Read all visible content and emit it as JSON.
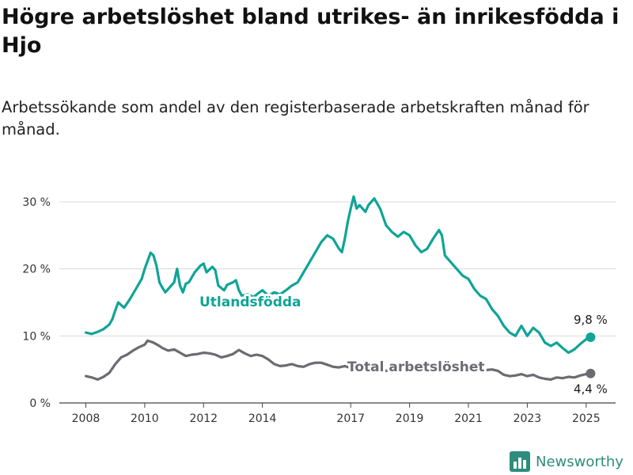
{
  "header": {
    "title": "Högre arbetslöshet bland utrikes- än inrikesfödda i Hjo",
    "subtitle": "Arbetssökande som andel av den registerbaserade arbetskraften månad för månad."
  },
  "brand": {
    "name": "Newsworthy",
    "icon": "newsworthy-logo-icon",
    "color": "#2e8c7c"
  },
  "chart_data": {
    "type": "line",
    "x_unit": "year",
    "ylim": [
      0,
      32
    ],
    "yticks": [
      {
        "value": 0,
        "label": "0 %"
      },
      {
        "value": 10,
        "label": "10 %"
      },
      {
        "value": 20,
        "label": "20 %"
      },
      {
        "value": 30,
        "label": "30 %"
      }
    ],
    "xticks": [
      {
        "value": 2008,
        "label": "2008"
      },
      {
        "value": 2010,
        "label": "2010"
      },
      {
        "value": 2012,
        "label": "2012"
      },
      {
        "value": 2014,
        "label": "2014"
      },
      {
        "value": 2017,
        "label": "2017"
      },
      {
        "value": 2019,
        "label": "2019"
      },
      {
        "value": 2021,
        "label": "2021"
      },
      {
        "value": 2023,
        "label": "2023"
      },
      {
        "value": 2025,
        "label": "2025"
      }
    ],
    "grid": true,
    "series": [
      {
        "name": "Utlandsfödda",
        "color": "#0fa496",
        "end_label": "9,8 %",
        "points": [
          [
            2008.0,
            10.5
          ],
          [
            2008.2,
            10.3
          ],
          [
            2008.4,
            10.6
          ],
          [
            2008.6,
            11.0
          ],
          [
            2008.8,
            11.7
          ],
          [
            2008.9,
            12.5
          ],
          [
            2009.0,
            13.8
          ],
          [
            2009.1,
            15.0
          ],
          [
            2009.3,
            14.2
          ],
          [
            2009.5,
            15.5
          ],
          [
            2009.7,
            17.0
          ],
          [
            2009.9,
            18.5
          ],
          [
            2010.0,
            20.0
          ],
          [
            2010.2,
            22.4
          ],
          [
            2010.3,
            22.0
          ],
          [
            2010.4,
            20.5
          ],
          [
            2010.5,
            18.0
          ],
          [
            2010.6,
            17.2
          ],
          [
            2010.7,
            16.5
          ],
          [
            2010.9,
            17.5
          ],
          [
            2011.0,
            18.0
          ],
          [
            2011.1,
            20.0
          ],
          [
            2011.2,
            17.5
          ],
          [
            2011.3,
            16.5
          ],
          [
            2011.4,
            17.8
          ],
          [
            2011.5,
            18.0
          ],
          [
            2011.7,
            19.5
          ],
          [
            2011.9,
            20.5
          ],
          [
            2012.0,
            20.8
          ],
          [
            2012.1,
            19.5
          ],
          [
            2012.3,
            20.3
          ],
          [
            2012.4,
            19.8
          ],
          [
            2012.5,
            17.5
          ],
          [
            2012.7,
            16.8
          ],
          [
            2012.8,
            17.6
          ],
          [
            2013.0,
            18.0
          ],
          [
            2013.1,
            18.3
          ],
          [
            2013.2,
            16.8
          ],
          [
            2013.3,
            16.0
          ],
          [
            2013.5,
            16.2
          ],
          [
            2013.7,
            15.8
          ],
          [
            2013.9,
            16.5
          ],
          [
            2014.0,
            16.8
          ],
          [
            2014.2,
            16.0
          ],
          [
            2014.4,
            16.5
          ],
          [
            2014.6,
            16.2
          ],
          [
            2014.8,
            16.8
          ],
          [
            2015.0,
            17.5
          ],
          [
            2015.2,
            18.0
          ],
          [
            2015.4,
            19.5
          ],
          [
            2015.6,
            21.0
          ],
          [
            2015.8,
            22.5
          ],
          [
            2016.0,
            24.0
          ],
          [
            2016.2,
            25.0
          ],
          [
            2016.4,
            24.5
          ],
          [
            2016.6,
            23.0
          ],
          [
            2016.7,
            22.5
          ],
          [
            2016.8,
            24.5
          ],
          [
            2016.9,
            27.0
          ],
          [
            2017.0,
            29.0
          ],
          [
            2017.1,
            30.8
          ],
          [
            2017.2,
            29.0
          ],
          [
            2017.3,
            29.5
          ],
          [
            2017.5,
            28.5
          ],
          [
            2017.6,
            29.5
          ],
          [
            2017.8,
            30.5
          ],
          [
            2018.0,
            29.0
          ],
          [
            2018.2,
            26.5
          ],
          [
            2018.4,
            25.5
          ],
          [
            2018.6,
            24.8
          ],
          [
            2018.8,
            25.5
          ],
          [
            2019.0,
            25.0
          ],
          [
            2019.2,
            23.5
          ],
          [
            2019.4,
            22.5
          ],
          [
            2019.6,
            23.0
          ],
          [
            2019.8,
            24.5
          ],
          [
            2020.0,
            25.8
          ],
          [
            2020.1,
            25.0
          ],
          [
            2020.2,
            22.0
          ],
          [
            2020.4,
            21.0
          ],
          [
            2020.6,
            20.0
          ],
          [
            2020.8,
            19.0
          ],
          [
            2021.0,
            18.5
          ],
          [
            2021.2,
            17.0
          ],
          [
            2021.4,
            16.0
          ],
          [
            2021.6,
            15.5
          ],
          [
            2021.8,
            14.0
          ],
          [
            2022.0,
            13.0
          ],
          [
            2022.2,
            11.5
          ],
          [
            2022.4,
            10.5
          ],
          [
            2022.6,
            10.0
          ],
          [
            2022.8,
            11.5
          ],
          [
            2023.0,
            10.0
          ],
          [
            2023.2,
            11.2
          ],
          [
            2023.4,
            10.5
          ],
          [
            2023.6,
            9.0
          ],
          [
            2023.8,
            8.5
          ],
          [
            2024.0,
            9.0
          ],
          [
            2024.2,
            8.2
          ],
          [
            2024.4,
            7.5
          ],
          [
            2024.6,
            8.0
          ],
          [
            2024.8,
            8.8
          ],
          [
            2025.0,
            9.5
          ],
          [
            2025.15,
            9.8
          ]
        ]
      },
      {
        "name": "Total arbetslöshet",
        "color": "#6b6b72",
        "end_label": "4,4 %",
        "points": [
          [
            2008.0,
            4.0
          ],
          [
            2008.2,
            3.8
          ],
          [
            2008.4,
            3.5
          ],
          [
            2008.6,
            3.9
          ],
          [
            2008.8,
            4.5
          ],
          [
            2009.0,
            5.8
          ],
          [
            2009.2,
            6.8
          ],
          [
            2009.4,
            7.2
          ],
          [
            2009.6,
            7.8
          ],
          [
            2009.8,
            8.3
          ],
          [
            2010.0,
            8.7
          ],
          [
            2010.1,
            9.3
          ],
          [
            2010.3,
            9.0
          ],
          [
            2010.5,
            8.5
          ],
          [
            2010.6,
            8.2
          ],
          [
            2010.8,
            7.8
          ],
          [
            2011.0,
            8.0
          ],
          [
            2011.2,
            7.5
          ],
          [
            2011.4,
            7.0
          ],
          [
            2011.6,
            7.2
          ],
          [
            2011.8,
            7.3
          ],
          [
            2012.0,
            7.5
          ],
          [
            2012.2,
            7.4
          ],
          [
            2012.4,
            7.2
          ],
          [
            2012.6,
            6.8
          ],
          [
            2012.8,
            7.0
          ],
          [
            2013.0,
            7.3
          ],
          [
            2013.2,
            7.9
          ],
          [
            2013.4,
            7.4
          ],
          [
            2013.6,
            7.0
          ],
          [
            2013.8,
            7.2
          ],
          [
            2014.0,
            7.0
          ],
          [
            2014.2,
            6.5
          ],
          [
            2014.4,
            5.8
          ],
          [
            2014.6,
            5.5
          ],
          [
            2014.8,
            5.6
          ],
          [
            2015.0,
            5.8
          ],
          [
            2015.2,
            5.5
          ],
          [
            2015.4,
            5.4
          ],
          [
            2015.6,
            5.8
          ],
          [
            2015.8,
            6.0
          ],
          [
            2016.0,
            6.0
          ],
          [
            2016.2,
            5.7
          ],
          [
            2016.4,
            5.4
          ],
          [
            2016.6,
            5.3
          ],
          [
            2016.8,
            5.5
          ],
          [
            2017.0,
            5.2
          ],
          [
            2017.2,
            5.0
          ],
          [
            2017.4,
            5.1
          ],
          [
            2017.6,
            4.9
          ],
          [
            2017.8,
            5.2
          ],
          [
            2018.0,
            5.0
          ],
          [
            2018.2,
            4.8
          ],
          [
            2018.4,
            4.9
          ],
          [
            2018.6,
            4.7
          ],
          [
            2018.8,
            5.0
          ],
          [
            2019.0,
            5.2
          ],
          [
            2019.2,
            5.0
          ],
          [
            2019.4,
            5.2
          ],
          [
            2019.6,
            5.4
          ],
          [
            2019.8,
            5.3
          ],
          [
            2020.0,
            5.8
          ],
          [
            2020.2,
            6.0
          ],
          [
            2020.4,
            5.8
          ],
          [
            2020.6,
            5.6
          ],
          [
            2020.8,
            5.5
          ],
          [
            2021.0,
            5.4
          ],
          [
            2021.2,
            5.2
          ],
          [
            2021.4,
            5.0
          ],
          [
            2021.6,
            4.9
          ],
          [
            2021.8,
            5.0
          ],
          [
            2022.0,
            4.8
          ],
          [
            2022.2,
            4.2
          ],
          [
            2022.4,
            4.0
          ],
          [
            2022.6,
            4.1
          ],
          [
            2022.8,
            4.3
          ],
          [
            2023.0,
            4.0
          ],
          [
            2023.2,
            4.2
          ],
          [
            2023.4,
            3.8
          ],
          [
            2023.6,
            3.6
          ],
          [
            2023.8,
            3.5
          ],
          [
            2024.0,
            3.8
          ],
          [
            2024.2,
            3.7
          ],
          [
            2024.4,
            3.9
          ],
          [
            2024.6,
            3.8
          ],
          [
            2024.8,
            4.1
          ],
          [
            2025.0,
            4.3
          ],
          [
            2025.15,
            4.4
          ]
        ]
      }
    ]
  }
}
